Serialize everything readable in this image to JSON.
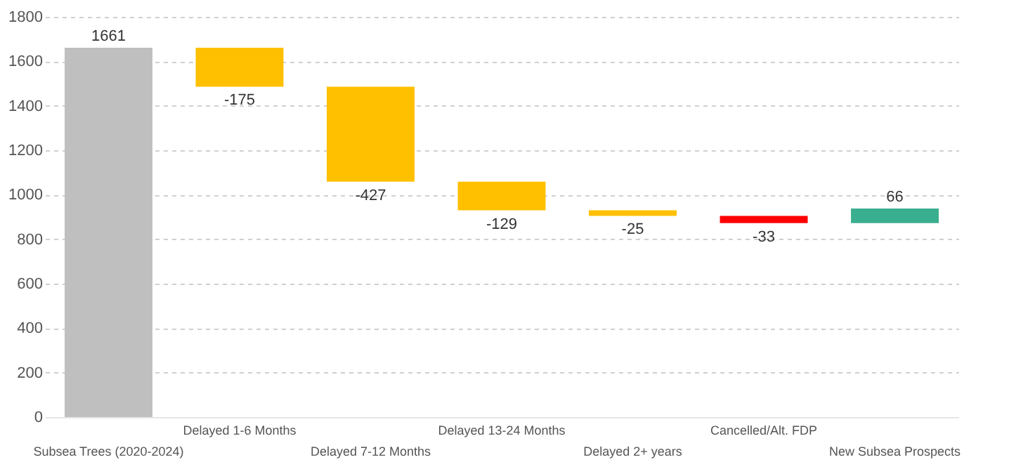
{
  "chart_data": {
    "type": "bar",
    "categories": [
      "Subsea Trees (2020-2024)",
      "Delayed 1-6 Months",
      "Delayed 7-12 Months",
      "Delayed 13-24 Months",
      "Delayed 2+ years",
      "Cancelled/Alt. FDP",
      "New Subsea Prospects"
    ],
    "values": [
      1661,
      -175,
      -427,
      -129,
      -25,
      -33,
      66
    ],
    "base": [
      0,
      1661,
      1486,
      1059,
      930,
      905,
      872
    ],
    "colors": [
      "#bfbfbf",
      "#ffc000",
      "#ffc000",
      "#ffc000",
      "#ffc000",
      "#ff0000",
      "#3aaf8f"
    ],
    "ylim": [
      0,
      1800
    ],
    "yticks": [
      0,
      200,
      400,
      600,
      800,
      1000,
      1200,
      1400,
      1600,
      1800
    ],
    "grid": "y",
    "data_labels": true,
    "legend": false
  }
}
